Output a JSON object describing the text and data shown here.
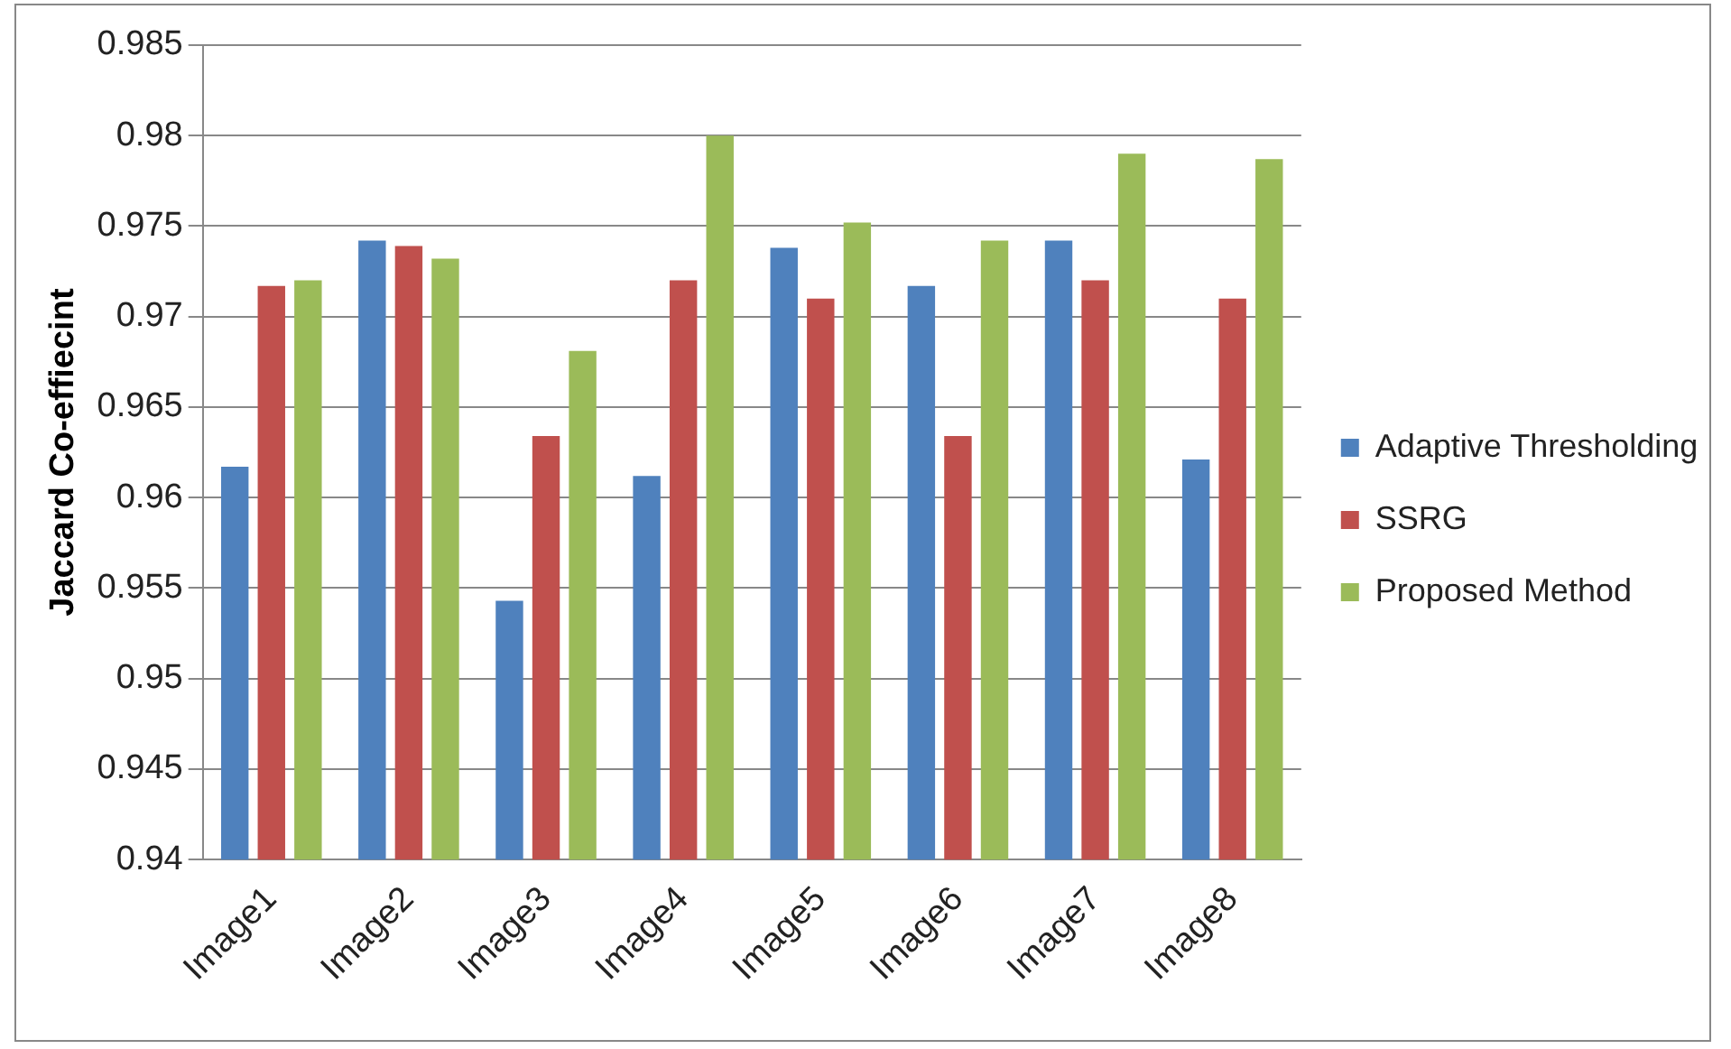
{
  "chart_data": {
    "type": "bar",
    "ylabel": "Jaccard Co-effiecint",
    "categories": [
      "Image1",
      "Image2",
      "Image3",
      "Image4",
      "Image5",
      "Image6",
      "Image7",
      "Image8"
    ],
    "series": [
      {
        "name": "Adaptive Thresholding",
        "color": "#4f81bd",
        "values": [
          0.9617,
          0.9742,
          0.9543,
          0.9612,
          0.9738,
          0.9717,
          0.9742,
          0.9621
        ]
      },
      {
        "name": "SSRG",
        "color": "#c0504d",
        "values": [
          0.9717,
          0.9739,
          0.9634,
          0.972,
          0.971,
          0.9634,
          0.972,
          0.971
        ]
      },
      {
        "name": "Proposed Method",
        "color": "#9bbb59",
        "values": [
          0.972,
          0.9732,
          0.9681,
          0.98,
          0.9752,
          0.9742,
          0.979,
          0.9787
        ]
      }
    ],
    "ylim": [
      0.94,
      0.985
    ],
    "yticks": [
      0.94,
      0.945,
      0.95,
      0.955,
      0.96,
      0.965,
      0.97,
      0.975,
      0.98,
      0.985
    ],
    "grid": "y",
    "legend": "right"
  }
}
